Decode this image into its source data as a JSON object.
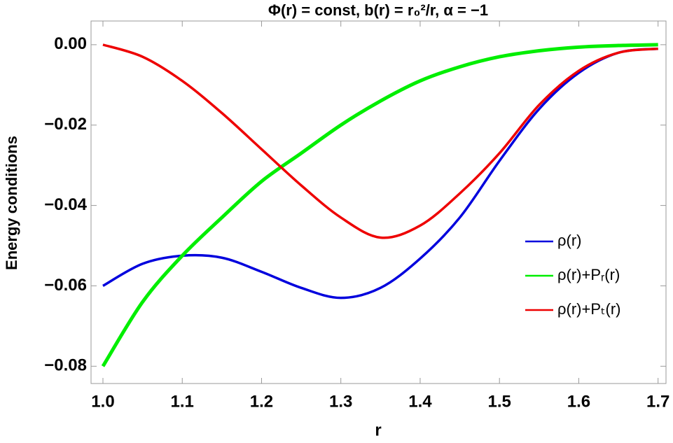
{
  "chart_data": {
    "type": "line",
    "title": "Φ(r) = const, b(r) = r₀²/r, α = −1",
    "x_label": "r",
    "y_label": "Energy conditions",
    "x": [
      1.0,
      1.05,
      1.1,
      1.15,
      1.2,
      1.25,
      1.3,
      1.35,
      1.4,
      1.45,
      1.5,
      1.55,
      1.6,
      1.65,
      1.7
    ],
    "series": [
      {
        "name": "ρ(r)",
        "color": "#0000dd",
        "values": [
          -0.06,
          -0.0545,
          -0.0525,
          -0.053,
          -0.0565,
          -0.0605,
          -0.063,
          -0.0605,
          -0.0532,
          -0.043,
          -0.0289,
          -0.016,
          -0.007,
          -0.002,
          -0.001
        ]
      },
      {
        "name": "ρ(r)+Pᵣ(r)",
        "color": "#00ee00",
        "values": [
          -0.08,
          -0.064,
          -0.0525,
          -0.043,
          -0.034,
          -0.027,
          -0.02,
          -0.014,
          -0.009,
          -0.0055,
          -0.003,
          -0.0015,
          -0.0006,
          -0.0002,
          0
        ]
      },
      {
        "name": "ρ(r)+Pₜ(r)",
        "color": "#ee0000",
        "values": [
          0,
          -0.003,
          -0.009,
          -0.017,
          -0.026,
          -0.035,
          -0.043,
          -0.048,
          -0.045,
          -0.037,
          -0.027,
          -0.015,
          -0.0065,
          -0.002,
          -0.001
        ]
      }
    ],
    "xlim": [
      0.985,
      1.71
    ],
    "xticks": [
      {
        "value": 1,
        "label": "1.0"
      },
      1.1,
      1.2,
      1.3,
      1.4,
      1.5,
      1.6,
      1.7
    ],
    "ylim": [
      -0.0843,
      0.0059
    ],
    "yticks": [
      {
        "value": 0,
        "label": "0.00"
      },
      {
        "value": -0.02,
        "label": "−0.02"
      },
      {
        "value": -0.04,
        "label": "−0.04"
      },
      {
        "value": -0.06,
        "label": "−0.06"
      },
      {
        "value": -0.08,
        "label": "−0.08"
      }
    ],
    "legend": "right"
  }
}
